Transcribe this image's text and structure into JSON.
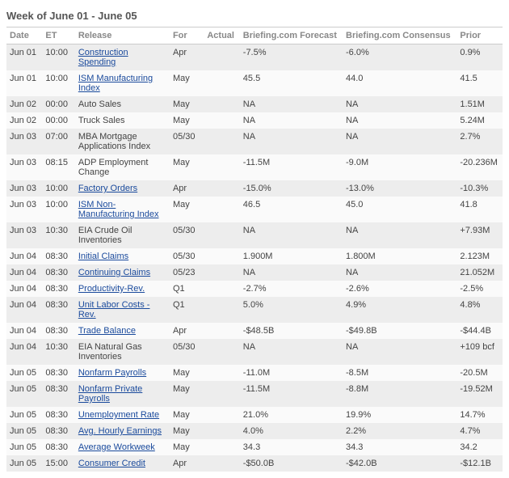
{
  "title": "Week of June 01 - June 05",
  "columns": {
    "date": "Date",
    "et": "ET",
    "release": "Release",
    "for": "For",
    "actual": "Actual",
    "bf": "Briefing.com Forecast",
    "bc": "Briefing.com Consensus",
    "prior": "Prior"
  },
  "rows": [
    {
      "date": "Jun 01",
      "et": "10:00",
      "release": "Construction Spending",
      "link": true,
      "for": "Apr",
      "actual": "",
      "bf": "-7.5%",
      "bc": "-6.0%",
      "prior": "0.9%"
    },
    {
      "date": "Jun 01",
      "et": "10:00",
      "release": "ISM Manufacturing Index",
      "link": true,
      "for": "May",
      "actual": "",
      "bf": "45.5",
      "bc": "44.0",
      "prior": "41.5"
    },
    {
      "date": "Jun 02",
      "et": "00:00",
      "release": "Auto Sales",
      "link": false,
      "for": "May",
      "actual": "",
      "bf": "NA",
      "bc": "NA",
      "prior": "1.51M"
    },
    {
      "date": "Jun 02",
      "et": "00:00",
      "release": "Truck Sales",
      "link": false,
      "for": "May",
      "actual": "",
      "bf": "NA",
      "bc": "NA",
      "prior": "5.24M"
    },
    {
      "date": "Jun 03",
      "et": "07:00",
      "release": "MBA Mortgage Applications Index",
      "link": false,
      "for": "05/30",
      "actual": "",
      "bf": "NA",
      "bc": "NA",
      "prior": "2.7%"
    },
    {
      "date": "Jun 03",
      "et": "08:15",
      "release": "ADP Employment Change",
      "link": false,
      "for": "May",
      "actual": "",
      "bf": "-11.5M",
      "bc": "-9.0M",
      "prior": "-20.236M"
    },
    {
      "date": "Jun 03",
      "et": "10:00",
      "release": "Factory Orders",
      "link": true,
      "for": "Apr",
      "actual": "",
      "bf": "-15.0%",
      "bc": "-13.0%",
      "prior": "-10.3%"
    },
    {
      "date": "Jun 03",
      "et": "10:00",
      "release": "ISM Non-Manufacturing Index",
      "link": true,
      "for": "May",
      "actual": "",
      "bf": "46.5",
      "bc": "45.0",
      "prior": "41.8"
    },
    {
      "date": "Jun 03",
      "et": "10:30",
      "release": "EIA Crude Oil Inventories",
      "link": false,
      "for": "05/30",
      "actual": "",
      "bf": "NA",
      "bc": "NA",
      "prior": "+7.93M"
    },
    {
      "date": "Jun 04",
      "et": "08:30",
      "release": "Initial Claims",
      "link": true,
      "for": "05/30",
      "actual": "",
      "bf": "1.900M",
      "bc": "1.800M",
      "prior": "2.123M"
    },
    {
      "date": "Jun 04",
      "et": "08:30",
      "release": "Continuing Claims",
      "link": true,
      "for": "05/23",
      "actual": "",
      "bf": "NA",
      "bc": "NA",
      "prior": "21.052M"
    },
    {
      "date": "Jun 04",
      "et": "08:30",
      "release": "Productivity-Rev.",
      "link": true,
      "for": "Q1",
      "actual": "",
      "bf": "-2.7%",
      "bc": "-2.6%",
      "prior": "-2.5%"
    },
    {
      "date": "Jun 04",
      "et": "08:30",
      "release": "Unit Labor Costs - Rev.",
      "link": true,
      "for": "Q1",
      "actual": "",
      "bf": "5.0%",
      "bc": "4.9%",
      "prior": "4.8%"
    },
    {
      "date": "Jun 04",
      "et": "08:30",
      "release": "Trade Balance",
      "link": true,
      "for": "Apr",
      "actual": "",
      "bf": "-$48.5B",
      "bc": "-$49.8B",
      "prior": "-$44.4B"
    },
    {
      "date": "Jun 04",
      "et": "10:30",
      "release": "EIA Natural Gas Inventories",
      "link": false,
      "for": "05/30",
      "actual": "",
      "bf": "NA",
      "bc": "NA",
      "prior": "+109 bcf"
    },
    {
      "date": "Jun 05",
      "et": "08:30",
      "release": "Nonfarm Payrolls",
      "link": true,
      "for": "May",
      "actual": "",
      "bf": "-11.0M",
      "bc": "-8.5M",
      "prior": "-20.5M"
    },
    {
      "date": "Jun 05",
      "et": "08:30",
      "release": "Nonfarm Private Payrolls",
      "link": true,
      "for": "May",
      "actual": "",
      "bf": "-11.5M",
      "bc": "-8.8M",
      "prior": "-19.52M"
    },
    {
      "date": "Jun 05",
      "et": "08:30",
      "release": "Unemployment Rate",
      "link": true,
      "for": "May",
      "actual": "",
      "bf": "21.0%",
      "bc": "19.9%",
      "prior": "14.7%"
    },
    {
      "date": "Jun 05",
      "et": "08:30",
      "release": "Avg. Hourly Earnings",
      "link": true,
      "for": "May",
      "actual": "",
      "bf": "4.0%",
      "bc": "2.2%",
      "prior": "4.7%"
    },
    {
      "date": "Jun 05",
      "et": "08:30",
      "release": "Average Workweek",
      "link": true,
      "for": "May",
      "actual": "",
      "bf": "34.3",
      "bc": "34.3",
      "prior": "34.2"
    },
    {
      "date": "Jun 05",
      "et": "15:00",
      "release": "Consumer Credit",
      "link": true,
      "for": "Apr",
      "actual": "",
      "bf": "-$50.0B",
      "bc": "-$42.0B",
      "prior": "-$12.1B"
    }
  ]
}
